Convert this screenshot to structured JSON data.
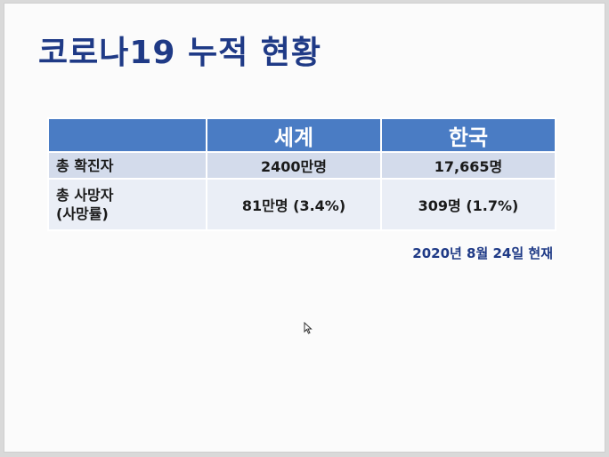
{
  "slide": {
    "title": "코로나19 누적 현황",
    "table": {
      "headers": [
        "",
        "세계",
        "한국"
      ],
      "rows": [
        {
          "label_line1": "총 확진자",
          "label_line2": "",
          "world": "2400만명",
          "korea": "17,665명"
        },
        {
          "label_line1": "총 사망자",
          "label_line2": "(사망률)",
          "world": "81만명 (3.4%)",
          "korea": "309명 (1.7%)"
        }
      ]
    },
    "date_note": "2020년 8월 24일 현재"
  },
  "colors": {
    "title": "#1f3a86",
    "header_bg": "#4a7cc4",
    "row1_bg": "#d3dbeb",
    "row2_bg": "#eaeef6"
  }
}
